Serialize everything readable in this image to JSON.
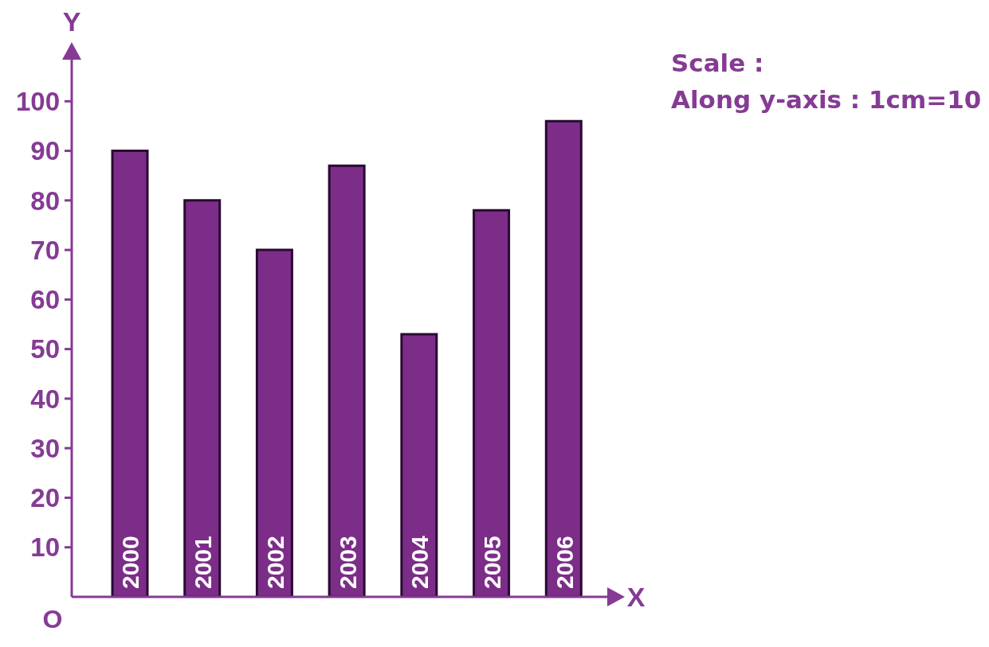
{
  "chart_data": {
    "type": "bar",
    "categories": [
      "2000",
      "2001",
      "2002",
      "2003",
      "2004",
      "2005",
      "2006"
    ],
    "values": [
      90,
      80,
      70,
      87,
      53,
      78,
      96
    ],
    "color": "#7b2d88",
    "xlabel": "X",
    "ylabel": "Y",
    "ylim": [
      0,
      110
    ],
    "yticks": [
      10,
      20,
      30,
      40,
      50,
      60,
      70,
      80,
      90,
      100
    ],
    "annotations": [
      "O",
      "Scale :",
      "Along y-axis : 1cm=10"
    ]
  }
}
